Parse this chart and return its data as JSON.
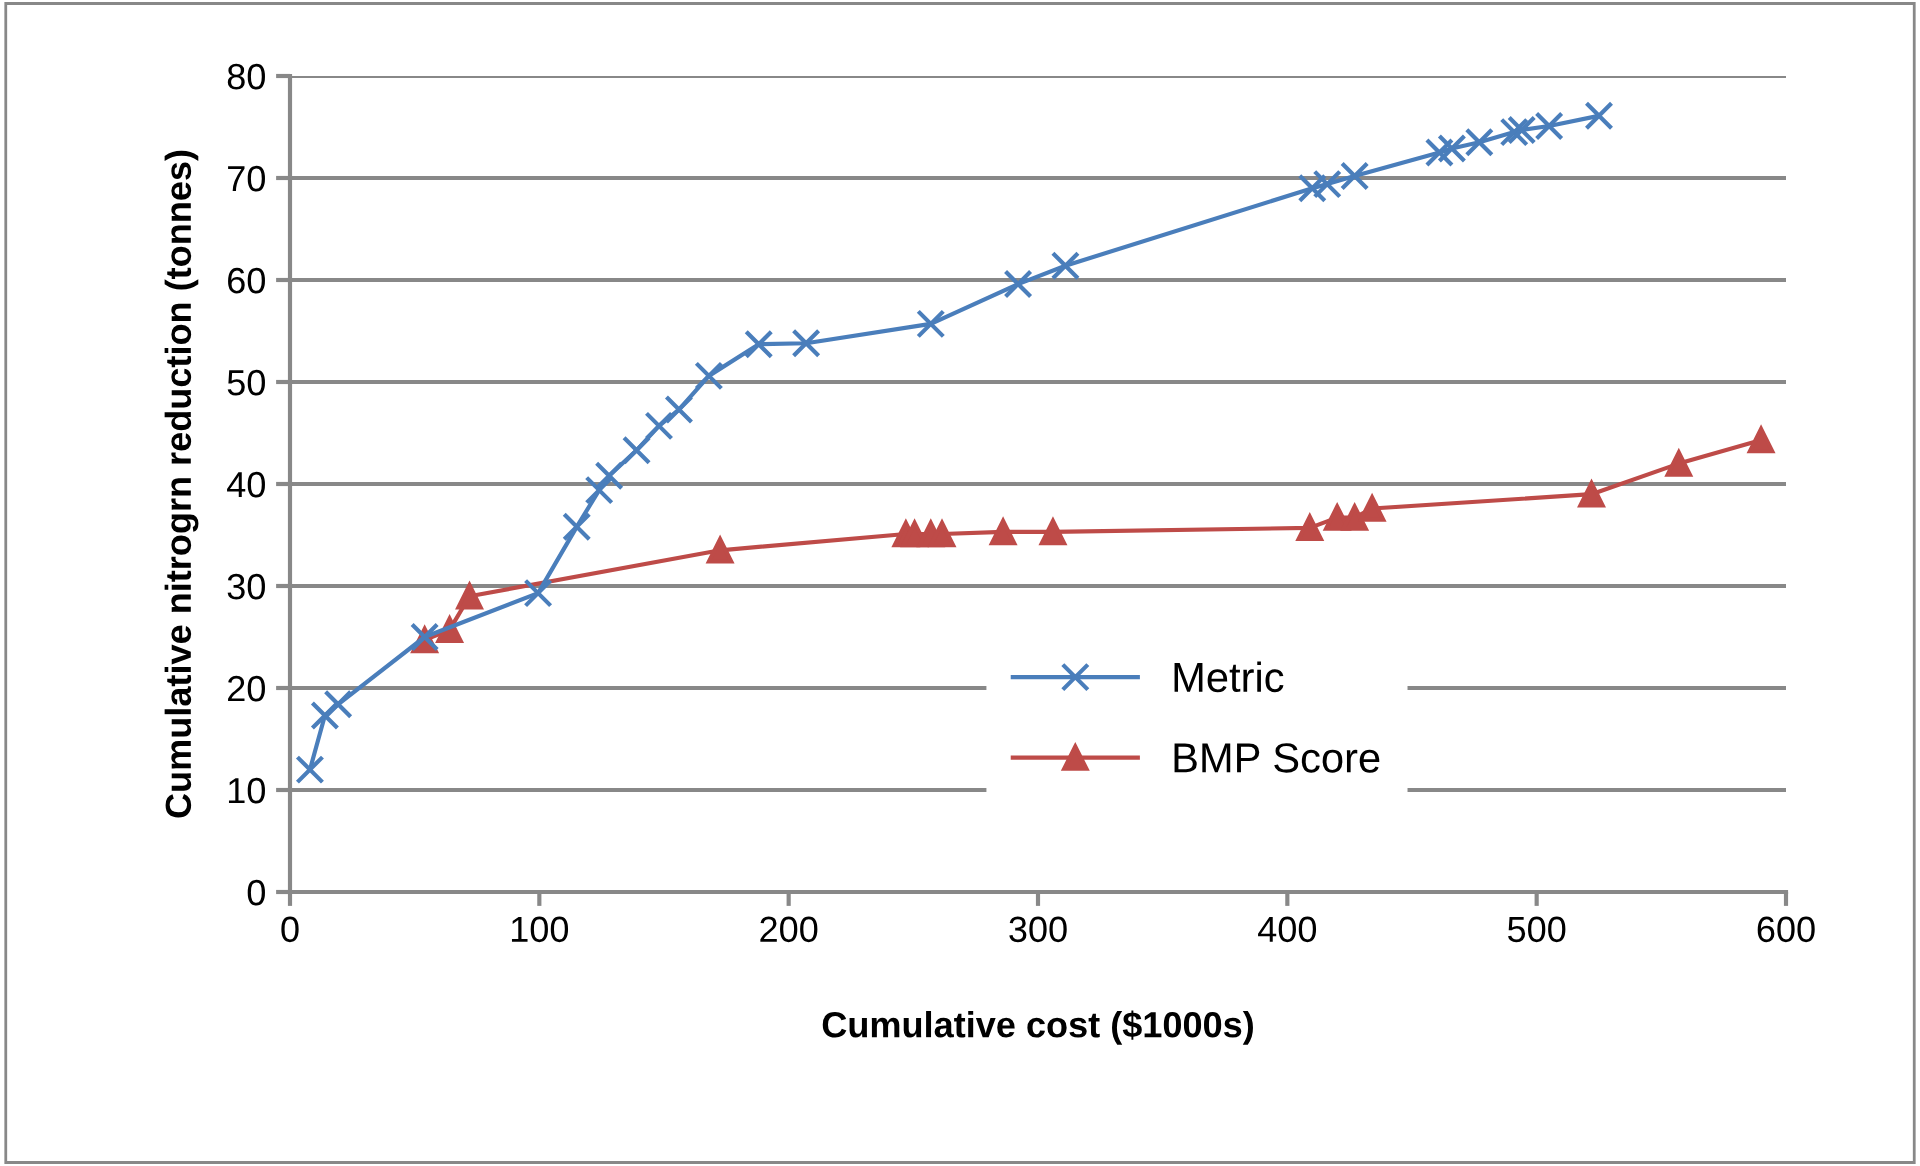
{
  "chart_data": {
    "type": "line",
    "xlabel": "Cumulative cost ($1000s)",
    "ylabel": "Cumulative nitrogrn reduction (tonnes)",
    "xlim": [
      0,
      600
    ],
    "xticks": [
      0,
      100,
      200,
      300,
      400,
      500,
      600
    ],
    "ylim": [
      0,
      80
    ],
    "yticks": [
      0,
      10,
      20,
      30,
      40,
      50,
      60,
      70,
      80
    ],
    "grid": "y",
    "legend": "bottom right",
    "line_style": "solid",
    "series": [
      {
        "name": "Metric",
        "color": "#4a7ebb",
        "marker": "cross",
        "x": [
          8,
          14,
          19.3,
          54,
          99.5,
          115,
          124,
          128,
          139,
          148,
          156,
          168,
          188,
          207,
          257,
          292,
          311,
          410,
          416,
          427,
          461,
          466,
          477,
          491,
          494,
          505,
          525
        ],
        "values": [
          12,
          17.3,
          18.4,
          25,
          29.3,
          35.8,
          39.4,
          40.8,
          43.3,
          45.7,
          47.3,
          50.6,
          53.7,
          53.8,
          55.7,
          59.6,
          61.4,
          69,
          69.4,
          70.2,
          72.5,
          72.9,
          73.5,
          74.5,
          74.7,
          75.1,
          76.1
        ]
      },
      {
        "name": "BMP Score",
        "color": "#be4b48",
        "marker": "triangle",
        "x": [
          54,
          64,
          72,
          172.5,
          247,
          250.5,
          257,
          261.5,
          286,
          306,
          409,
          420,
          427,
          434,
          522,
          557,
          590
        ],
        "values": [
          24.7,
          25.7,
          29,
          33.5,
          35.1,
          35.1,
          35.1,
          35.1,
          35.3,
          35.3,
          35.7,
          36.7,
          36.7,
          37.6,
          39,
          42,
          44.3
        ]
      }
    ]
  }
}
